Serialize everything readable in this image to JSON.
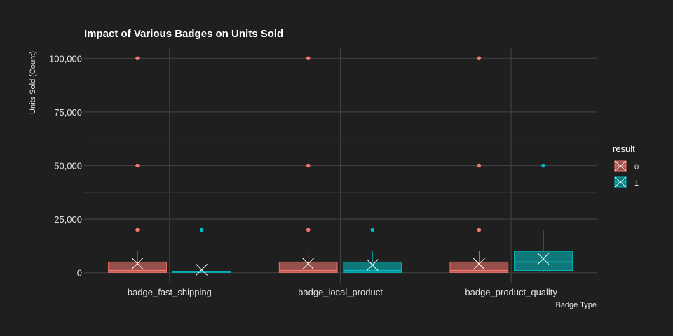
{
  "chart_data": {
    "type": "box",
    "title": "Impact of Various Badges on Units Sold",
    "xlabel": "Badge Type",
    "ylabel": "Units Sold (Count)",
    "ylim": [
      -5000,
      105000
    ],
    "y_ticks": [
      0,
      25000,
      50000,
      75000,
      100000
    ],
    "y_tick_labels": [
      "0",
      "25,000",
      "50,000",
      "75,000",
      "100,000"
    ],
    "categories": [
      "badge_fast_shipping",
      "badge_local_product",
      "badge_product_quality"
    ],
    "legend": {
      "title": "result",
      "position": "right"
    },
    "grid": true,
    "series": [
      {
        "name": "0",
        "color": "#f8766d",
        "boxes": [
          {
            "category": "badge_fast_shipping",
            "q1": 100,
            "median": 1000,
            "q3": 5000,
            "whisker_low": 0,
            "whisker_high": 10000,
            "mean": 4300,
            "outliers": [
              20000,
              50000,
              100000
            ]
          },
          {
            "category": "badge_local_product",
            "q1": 100,
            "median": 1000,
            "q3": 5000,
            "whisker_low": 0,
            "whisker_high": 10000,
            "mean": 4200,
            "outliers": [
              20000,
              50000,
              100000
            ]
          },
          {
            "category": "badge_product_quality",
            "q1": 100,
            "median": 1000,
            "q3": 5000,
            "whisker_low": 0,
            "whisker_high": 10000,
            "mean": 4100,
            "outliers": [
              20000,
              50000,
              100000
            ]
          }
        ]
      },
      {
        "name": "1",
        "color": "#00bfc4",
        "boxes": [
          {
            "category": "badge_fast_shipping",
            "q1": 100,
            "median": 400,
            "q3": 700,
            "whisker_low": 0,
            "whisker_high": 1000,
            "mean": 1400,
            "outliers": [
              20000
            ]
          },
          {
            "category": "badge_local_product",
            "q1": 100,
            "median": 1000,
            "q3": 5000,
            "whisker_low": 0,
            "whisker_high": 10000,
            "mean": 3600,
            "outliers": [
              20000
            ]
          },
          {
            "category": "badge_product_quality",
            "q1": 1000,
            "median": 5000,
            "q3": 10000,
            "whisker_low": 0,
            "whisker_high": 20000,
            "mean": 6500,
            "outliers": [
              50000
            ]
          }
        ]
      }
    ]
  }
}
